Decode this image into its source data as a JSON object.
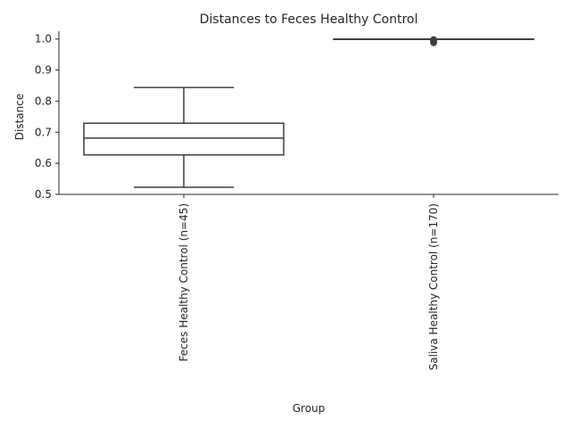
{
  "chart_data": {
    "type": "box",
    "title": "Distances to Feces Healthy Control",
    "xlabel": "Group",
    "ylabel": "Distance",
    "ylim": [
      0.5,
      1.025
    ],
    "yticks": [
      0.5,
      0.6,
      0.7,
      0.8,
      0.9,
      1.0
    ],
    "ytick_labels": [
      "0.5",
      "0.6",
      "0.7",
      "0.8",
      "0.9",
      "1.0"
    ],
    "grid": false,
    "categories": [
      "Feces Healthy Control (n=45)",
      "Saliva Healthy Control (n=170)"
    ],
    "series": [
      {
        "category": "Feces Healthy Control (n=45)",
        "whisker_low": 0.523,
        "q1": 0.627,
        "median": 0.681,
        "q3": 0.729,
        "whisker_high": 0.844,
        "outliers": []
      },
      {
        "category": "Saliva Healthy Control (n=170)",
        "whisker_low": 1.0,
        "q1": 1.0,
        "median": 1.0,
        "q3": 1.0,
        "whisker_high": 1.0,
        "outliers": [
          0.988,
          0.991,
          0.994,
          0.996,
          0.998
        ]
      }
    ],
    "colors": {
      "box_fill": "#ffffff",
      "box_line": "#3d3d3d",
      "axis": "#262626",
      "text": "#262626"
    }
  }
}
